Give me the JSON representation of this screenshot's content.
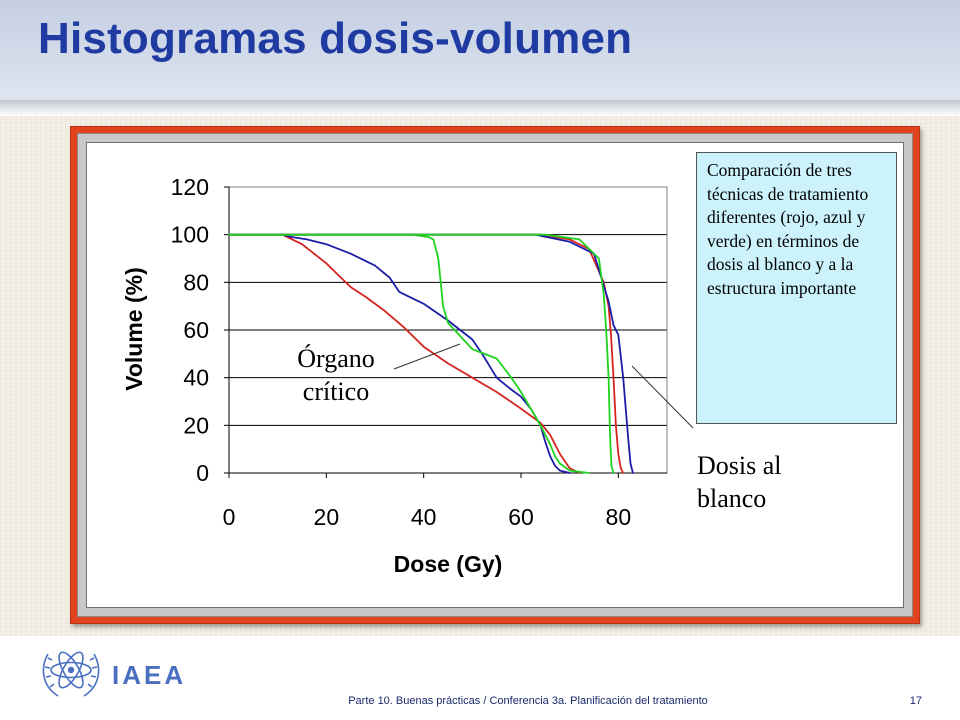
{
  "slide": {
    "title": "Histogramas dosis-volumen",
    "info_box": "Comparación de tres técnicas de tratamiento diferentes (rojo, azul y verde) en términos de dosis al blanco y a la estructura importante",
    "organ_note": [
      "Órgano",
      "crítico"
    ],
    "target_note": [
      "Dosis al",
      "blanco"
    ]
  },
  "footer": {
    "org": "IAEA",
    "text": "Parte 10. Buenas prácticas / Conferencia 3a. Planificación del tratamiento",
    "page": "17"
  },
  "colors": {
    "title": "#1f3aa0",
    "frame": "#e2431f",
    "red": "#d4241f",
    "blue": "#1c1ca6",
    "green": "#1ed21e"
  },
  "chart_data": {
    "type": "line",
    "title": "",
    "xlabel": "Dose (Gy)",
    "ylabel": "Volume (%)",
    "xlim": [
      0,
      90
    ],
    "ylim": [
      0,
      120
    ],
    "xticks": [
      0,
      20,
      40,
      60,
      80
    ],
    "yticks": [
      0,
      20,
      40,
      60,
      80,
      100,
      120
    ],
    "grid": "horizontal",
    "legend": "none",
    "series": [
      {
        "color": "#d4241f",
        "structure": "critical organ",
        "x": [
          0,
          11,
          12,
          15,
          20,
          23,
          25,
          28,
          32,
          36,
          40,
          45,
          50,
          55,
          60,
          64,
          66,
          67,
          68,
          69,
          70,
          71,
          72
        ],
        "y": [
          100,
          100,
          99,
          96,
          88,
          82,
          78,
          74,
          68,
          61,
          53,
          46,
          40,
          34,
          27,
          21,
          16,
          12,
          8,
          5,
          2,
          1,
          0
        ]
      },
      {
        "color": "#1c1ca6",
        "structure": "critical organ",
        "x": [
          0,
          11,
          13,
          16,
          20,
          25,
          30,
          33,
          35,
          40,
          45,
          50,
          52,
          55,
          58,
          60,
          62,
          64,
          65,
          66,
          67,
          68,
          70
        ],
        "y": [
          100,
          100,
          99,
          98,
          96,
          92,
          87,
          82,
          76,
          71,
          64,
          56,
          50,
          40,
          35,
          32,
          27,
          20,
          13,
          7,
          3,
          1,
          0
        ]
      },
      {
        "color": "#1ed21e",
        "structure": "critical organ",
        "x": [
          0,
          38,
          41,
          42,
          43,
          43.5,
          44,
          45,
          50,
          55,
          58,
          60,
          62,
          64,
          66,
          67,
          68,
          70,
          72,
          74
        ],
        "y": [
          100,
          100,
          99,
          98,
          90,
          80,
          70,
          63,
          52,
          48,
          40,
          34,
          27,
          20,
          12,
          7,
          4,
          1,
          0.5,
          0
        ]
      },
      {
        "color": "#d4241f",
        "structure": "target",
        "x": [
          0,
          64,
          70,
          74,
          77,
          78,
          78.5,
          79,
          79.5,
          80,
          80.5,
          81
        ],
        "y": [
          100,
          100,
          98,
          94,
          80,
          70,
          58,
          40,
          20,
          8,
          2,
          0
        ]
      },
      {
        "color": "#1c1ca6",
        "structure": "target",
        "x": [
          0,
          63,
          70,
          75,
          78,
          79,
          80,
          81,
          82,
          82.5,
          83
        ],
        "y": [
          100,
          100,
          97,
          92,
          72,
          62,
          58,
          40,
          15,
          4,
          0
        ]
      },
      {
        "color": "#1ed21e",
        "structure": "target",
        "x": [
          0,
          65,
          72,
          76,
          77,
          77.5,
          78,
          78.3,
          78.6,
          79
        ],
        "y": [
          100,
          100,
          98,
          90,
          75,
          60,
          40,
          15,
          3,
          0
        ]
      }
    ]
  }
}
